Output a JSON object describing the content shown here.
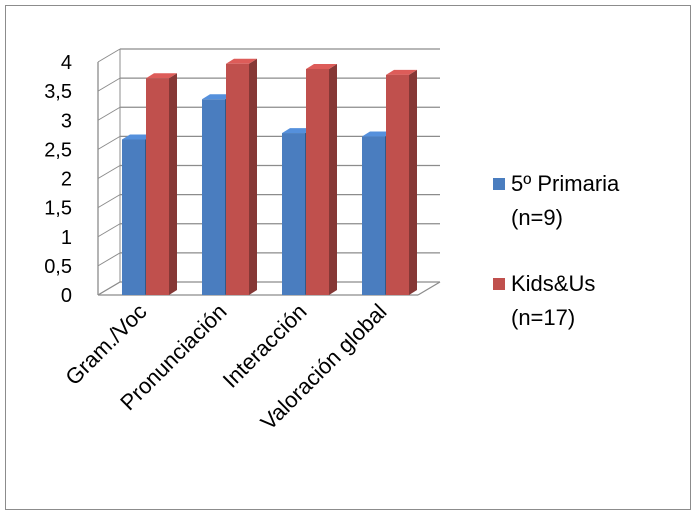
{
  "chart_data": {
    "type": "bar",
    "categories": [
      "Gram./Voc",
      "Pronunciación",
      "Interacción",
      "Valoración global"
    ],
    "series": [
      {
        "name_lines": [
          "5º Primaria",
          "(n=9)"
        ],
        "values": [
          2.67,
          3.36,
          2.78,
          2.72
        ],
        "color": "#4a7dbf"
      },
      {
        "name_lines": [
          "Kids&Us",
          "(n=17)"
        ],
        "values": [
          3.72,
          3.97,
          3.88,
          3.78
        ],
        "color": "#c0504d"
      }
    ],
    "ylim": [
      0,
      4
    ],
    "yticks": [
      "0",
      "0,5",
      "1",
      "1,5",
      "2",
      "2,5",
      "3",
      "3,5",
      "4"
    ],
    "grid": true,
    "legend": "right"
  }
}
